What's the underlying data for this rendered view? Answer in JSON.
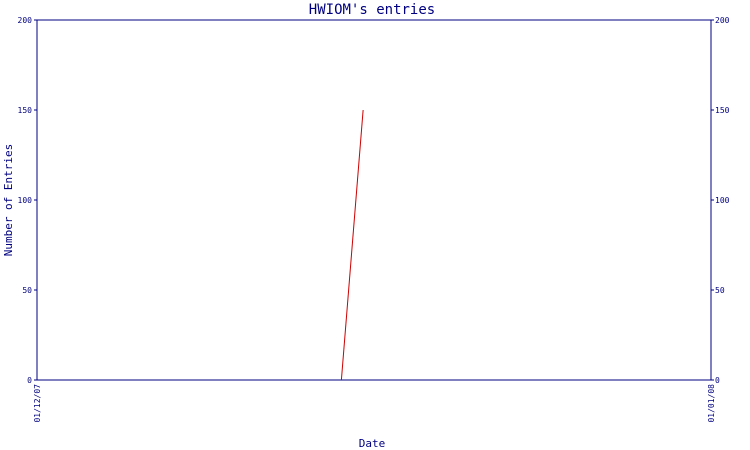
{
  "chart_data": {
    "type": "line",
    "title": "HWIOM's entries",
    "xlabel": "Date",
    "ylabel": "Number of Entries",
    "x_ticks": [
      "01/12/07",
      "01/01/08"
    ],
    "ylim": [
      0,
      200
    ],
    "y_ticks": [
      0,
      50,
      100,
      150,
      200
    ],
    "grid": false,
    "colors": {
      "axis": "#000080",
      "series": "#cc0000"
    },
    "series": [
      {
        "x": [
          "2007-12-15",
          "2007-12-16"
        ],
        "y": [
          0,
          150
        ]
      }
    ]
  }
}
